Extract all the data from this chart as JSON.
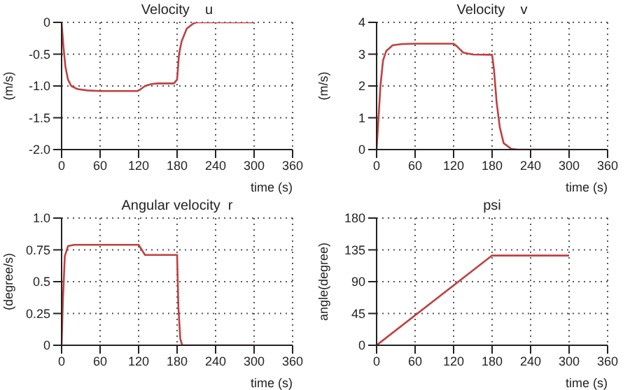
{
  "chart_data": [
    {
      "type": "line",
      "title": "Velocity    u",
      "xlabel": "time (s)",
      "ylabel": "(m/s)",
      "x": [
        0,
        3,
        6,
        10,
        15,
        25,
        40,
        60,
        118,
        122,
        130,
        140,
        150,
        175,
        180,
        183,
        187,
        195,
        205,
        210,
        300
      ],
      "xlim": [
        0,
        360
      ],
      "xticks": [
        0,
        60,
        120,
        180,
        240,
        300,
        360
      ],
      "ylim": [
        -2,
        0
      ],
      "yticks": [
        0,
        -0.5,
        {
          "value": -1,
          "label": "-1.0"
        },
        -1.5,
        {
          "value": -2,
          "label": "-2.0"
        }
      ],
      "grid": true,
      "legend": false,
      "marker": "none",
      "line_style": "solid",
      "series": [
        {
          "color": "#c04040",
          "values": [
            0,
            -0.4,
            -0.7,
            -0.9,
            -1.0,
            -1.05,
            -1.07,
            -1.08,
            -1.08,
            -1.06,
            -1.0,
            -0.97,
            -0.96,
            -0.96,
            -0.9,
            -0.5,
            -0.3,
            -0.1,
            -0.02,
            0,
            0
          ]
        }
      ]
    },
    {
      "type": "line",
      "title": "Velocity    v",
      "xlabel": "time (s)",
      "ylabel": "(m/s)",
      "x": [
        0,
        3,
        6,
        10,
        15,
        25,
        40,
        60,
        120,
        125,
        135,
        150,
        180,
        183,
        187,
        192,
        198,
        210,
        220,
        300
      ],
      "xlim": [
        0,
        360
      ],
      "xticks": [
        0,
        60,
        120,
        180,
        240,
        300,
        360
      ],
      "ylim": [
        0,
        4
      ],
      "yticks": [
        0,
        1,
        2,
        3,
        4
      ],
      "grid": true,
      "legend": false,
      "marker": "none",
      "line_style": "solid",
      "series": [
        {
          "color": "#c04040",
          "values": [
            0,
            1,
            2,
            2.8,
            3.1,
            3.28,
            3.32,
            3.33,
            3.33,
            3.25,
            3.05,
            2.99,
            2.98,
            2.5,
            1.5,
            0.7,
            0.2,
            0.02,
            0,
            0
          ]
        }
      ]
    },
    {
      "type": "line",
      "title": "Angular velocity  r",
      "xlabel": "time (s)",
      "ylabel": "(degree/s)",
      "x": [
        0,
        2,
        5,
        10,
        20,
        120,
        125,
        130,
        180,
        182,
        185,
        188,
        300
      ],
      "xlim": [
        0,
        360
      ],
      "xticks": [
        0,
        60,
        120,
        180,
        240,
        300,
        360
      ],
      "ylim": [
        0,
        1
      ],
      "yticks": [
        0,
        0.25,
        0.5,
        0.75,
        {
          "value": 1,
          "label": "1.0"
        }
      ],
      "grid": true,
      "legend": false,
      "marker": "none",
      "line_style": "solid",
      "series": [
        {
          "color": "#c04040",
          "values": [
            0,
            0.35,
            0.7,
            0.78,
            0.79,
            0.79,
            0.75,
            0.71,
            0.71,
            0.3,
            0.05,
            0,
            0
          ]
        }
      ]
    },
    {
      "type": "line",
      "title": "psi",
      "xlabel": "time (s)",
      "ylabel": "angle(degree)",
      "x": [
        0,
        180,
        300
      ],
      "xlim": [
        0,
        360
      ],
      "xticks": [
        0,
        60,
        120,
        180,
        240,
        300,
        360
      ],
      "ylim": [
        0,
        180
      ],
      "yticks": [
        0,
        45,
        90,
        135,
        180
      ],
      "grid": true,
      "legend": false,
      "marker": "none",
      "line_style": "solid",
      "series": [
        {
          "color": "#c04040",
          "values": [
            0,
            127,
            127
          ]
        }
      ]
    }
  ]
}
